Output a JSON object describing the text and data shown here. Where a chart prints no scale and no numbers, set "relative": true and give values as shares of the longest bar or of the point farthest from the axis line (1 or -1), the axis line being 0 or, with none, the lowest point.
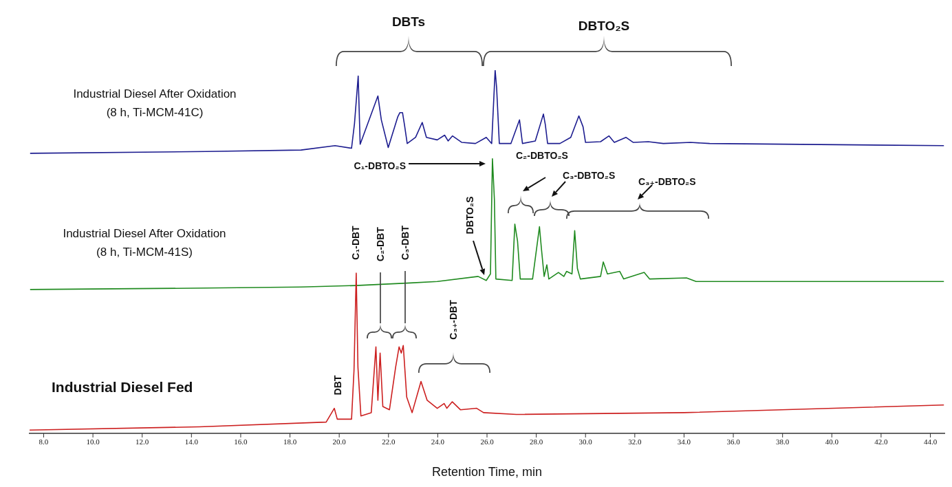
{
  "chart_data": {
    "type": "line",
    "relative": true,
    "xlim": [
      7.4,
      44.6
    ],
    "marker": "none",
    "line_style": "solid",
    "xlabel": "Retention Time, min",
    "xticks": [
      {
        "value": 8,
        "label": "8.0"
      },
      {
        "value": 10,
        "label": "10.0"
      },
      {
        "value": 12,
        "label": "12.0"
      },
      {
        "value": 14,
        "label": "14.0"
      },
      {
        "value": 16,
        "label": "16.0"
      },
      {
        "value": 18,
        "label": "18.0"
      },
      {
        "value": 20,
        "label": "20.0"
      },
      {
        "value": 22,
        "label": "22.0"
      },
      {
        "value": 24,
        "label": "24.0"
      },
      {
        "value": 26,
        "label": "26.0"
      },
      {
        "value": 28,
        "label": "28.0"
      },
      {
        "value": 30,
        "label": "30.0"
      },
      {
        "value": 32,
        "label": "32.0"
      },
      {
        "value": 34,
        "label": "34.0"
      },
      {
        "value": 36,
        "label": "36.0"
      },
      {
        "value": 38,
        "label": "38.0"
      },
      {
        "value": 40,
        "label": "40.0"
      },
      {
        "value": 42,
        "label": "42.0"
      },
      {
        "value": 44,
        "label": "44.0"
      }
    ],
    "series": [
      {
        "name": "Industrial Diesel After Oxidation\n(8 h, Ti-MCM-41C)",
        "color": "#1c1c8f",
        "x": [
          7.45,
          14.6,
          18.45,
          19.83,
          20.5,
          20.62,
          20.77,
          20.85,
          21.57,
          21.71,
          21.99,
          22.38,
          22.46,
          22.57,
          22.65,
          22.76,
          23.1,
          23.37,
          23.54,
          23.98,
          24.28,
          24.42,
          24.6,
          24.98,
          25.53,
          25.97,
          26.19,
          26.33,
          26.39,
          26.5,
          26.97,
          27.32,
          27.44,
          27.96,
          28.29,
          28.37,
          28.46,
          28.96,
          29.4,
          29.73,
          29.9,
          30.0,
          30.61,
          30.95,
          31.17,
          31.64,
          31.94,
          32.55,
          33.16,
          34.26,
          35.04,
          44.55
        ],
        "values": [
          0.771,
          0.776,
          0.78,
          0.792,
          0.785,
          0.853,
          0.984,
          0.796,
          0.929,
          0.863,
          0.787,
          0.872,
          0.883,
          0.883,
          0.849,
          0.798,
          0.815,
          0.856,
          0.815,
          0.808,
          0.821,
          0.805,
          0.819,
          0.801,
          0.798,
          0.815,
          0.798,
          1,
          0.952,
          0.798,
          0.798,
          0.863,
          0.798,
          0.805,
          0.879,
          0.849,
          0.798,
          0.798,
          0.815,
          0.874,
          0.844,
          0.801,
          0.803,
          0.819,
          0.801,
          0.815,
          0.801,
          0.803,
          0.798,
          0.801,
          0.798,
          0.792
        ]
      },
      {
        "name": "Industrial Diesel After Oxidation\n(8 h, Ti-MCM-41S)",
        "color": "#1f8a1f",
        "x": [
          7.45,
          14.6,
          18.45,
          20.66,
          22.87,
          23.98,
          25.64,
          25.97,
          26.14,
          26.22,
          26.3,
          26.36,
          27.02,
          27.13,
          27.24,
          27.35,
          27.85,
          28.13,
          28.21,
          28.32,
          28.43,
          28.51,
          28.9,
          29.12,
          29.23,
          29.45,
          29.56,
          29.67,
          29.79,
          30.61,
          30.72,
          30.89,
          31.39,
          31.55,
          32.38,
          32.6,
          34.1,
          34.49,
          44.55
        ],
        "values": [
          0.396,
          0.4,
          0.403,
          0.407,
          0.414,
          0.418,
          0.432,
          0.421,
          0.439,
          0.756,
          0.644,
          0.425,
          0.421,
          0.576,
          0.529,
          0.425,
          0.425,
          0.569,
          0.508,
          0.432,
          0.464,
          0.425,
          0.443,
          0.432,
          0.446,
          0.439,
          0.558,
          0.454,
          0.425,
          0.432,
          0.472,
          0.439,
          0.446,
          0.425,
          0.443,
          0.425,
          0.428,
          0.418,
          0.418
        ]
      },
      {
        "name": "Industrial Diesel Fed",
        "color": "#cc1f1f",
        "x": [
          7.43,
          14.33,
          19.47,
          19.8,
          19.92,
          20.5,
          20.6,
          20.69,
          20.76,
          20.88,
          21.3,
          21.49,
          21.57,
          21.66,
          21.77,
          22.04,
          22.29,
          22.43,
          22.52,
          22.6,
          22.74,
          22.96,
          23.32,
          23.57,
          23.98,
          24.26,
          24.37,
          24.59,
          24.92,
          25.58,
          25.86,
          27.19,
          34.0,
          44.55
        ],
        "values": [
          0.009,
          0.018,
          0.031,
          0.069,
          0.039,
          0.039,
          0.173,
          0.441,
          0.182,
          0.048,
          0.057,
          0.238,
          0.091,
          0.221,
          0.074,
          0.065,
          0.182,
          0.238,
          0.221,
          0.242,
          0.1,
          0.057,
          0.143,
          0.091,
          0.069,
          0.082,
          0.069,
          0.087,
          0.065,
          0.069,
          0.057,
          0.052,
          0.057,
          0.078
        ]
      }
    ],
    "annotations": [
      "DBTs",
      "DBTO₂S",
      "C₁-DBTO₂S",
      "C₂-DBTO₂S",
      "C₃-DBTO₂S",
      "C₃₊-DBTO₂S",
      "DBTO₂S",
      "DBT",
      "C₁-DBT",
      "C₂-DBT",
      "C₃-DBT",
      "C₃₊-DBT"
    ]
  }
}
